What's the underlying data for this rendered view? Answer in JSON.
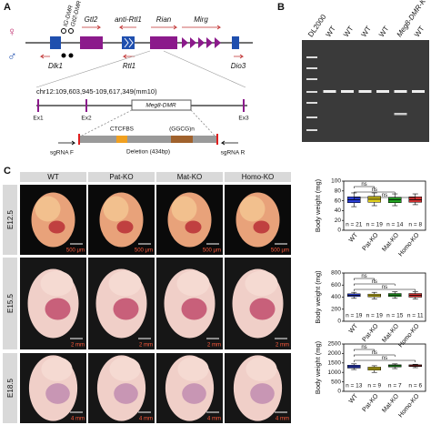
{
  "panel_a": {
    "label": "A",
    "female": "♀",
    "male": "♂",
    "dmrs": [
      "IG-DMR",
      "Gtl2-DMR"
    ],
    "genes_top": [
      "Gtl2",
      "anti-Rtl1",
      "Rian",
      "Mirg"
    ],
    "genes_bottom": [
      "Dlk1",
      "Rtl1",
      "Dio3"
    ],
    "coords": "chr12:109,603,945-109,617,349(mm10)",
    "region": "Meg8-DMR",
    "exons": [
      "Ex1",
      "Ex2",
      "Ex3"
    ],
    "ctcf": "CTCFBS",
    "repeat": "(GGCG)n",
    "sgrna_f": "sgRNA F",
    "deletion": "Deletion (434bp)",
    "sgrna_r": "sgRNA R"
  },
  "panel_b": {
    "label": "B",
    "lanes": [
      "DL2000",
      "WT",
      "WT",
      "WT",
      "WT",
      "Meg8-DMR-KO",
      "WT"
    ]
  },
  "panel_c": {
    "label": "C",
    "columns": [
      "WT",
      "Pat-KO",
      "Mat-KO",
      "Homo-KO"
    ],
    "rows": [
      "E12.5",
      "E15.5",
      "E18.5"
    ],
    "scale_bars": [
      [
        "500 μm",
        "500 μm",
        "500 μm",
        "500 μm"
      ],
      [
        "2 mm",
        "2 mm",
        "2 mm",
        "2 mm"
      ],
      [
        "4 mm",
        "4 mm",
        "4 mm",
        "4 mm"
      ]
    ],
    "plots": [
      {
        "ylabel": "Body weight (mg)",
        "ylim": [
          0,
          100
        ],
        "yticks": [
          0,
          20,
          40,
          60,
          80,
          100
        ],
        "categories": [
          "WT",
          "Pat-KO",
          "Mat-KO",
          "Homo-KO"
        ],
        "colors": [
          "#2b3fd6",
          "#e3d21e",
          "#23a523",
          "#d23232"
        ],
        "boxes": [
          {
            "min": 48,
            "q1": 56,
            "median": 62,
            "q3": 68,
            "max": 76
          },
          {
            "min": 50,
            "q1": 57,
            "median": 63,
            "q3": 69,
            "max": 76
          },
          {
            "min": 50,
            "q1": 56,
            "median": 62,
            "q3": 67,
            "max": 74
          },
          {
            "min": 52,
            "q1": 57,
            "median": 62,
            "q3": 68,
            "max": 74
          }
        ],
        "n_labels": [
          "n = 21",
          "n = 19",
          "n = 14",
          "n = 8"
        ],
        "sig": [
          "ns",
          "ns",
          "ns"
        ]
      },
      {
        "ylabel": "Body weight (mg)",
        "ylim": [
          0,
          800
        ],
        "yticks": [
          0,
          200,
          400,
          600,
          800
        ],
        "categories": [
          "WT",
          "Pat-KO",
          "Mat-KO",
          "Homo-KO"
        ],
        "colors": [
          "#2b3fd6",
          "#e3d21e",
          "#23a523",
          "#d23232"
        ],
        "boxes": [
          {
            "min": 380,
            "q1": 410,
            "median": 430,
            "q3": 455,
            "max": 480
          },
          {
            "min": 370,
            "q1": 405,
            "median": 425,
            "q3": 450,
            "max": 480
          },
          {
            "min": 380,
            "q1": 410,
            "median": 435,
            "q3": 460,
            "max": 490
          },
          {
            "min": 370,
            "q1": 400,
            "median": 430,
            "q3": 460,
            "max": 490
          }
        ],
        "n_labels": [
          "n = 19",
          "n = 19",
          "n = 15",
          "n = 11"
        ],
        "sig": [
          "ns",
          "ns",
          "ns"
        ]
      },
      {
        "ylabel": "Body weight (mg)",
        "ylim": [
          0,
          2500
        ],
        "yticks": [
          0,
          500,
          1000,
          1500,
          2000,
          2500
        ],
        "categories": [
          "WT",
          "Pat-KO",
          "Mat-KO",
          "Homo-KO"
        ],
        "colors": [
          "#2b3fd6",
          "#e3d21e",
          "#23a523",
          "#d23232"
        ],
        "boxes": [
          {
            "min": 1150,
            "q1": 1230,
            "median": 1300,
            "q3": 1380,
            "max": 1450
          },
          {
            "min": 1000,
            "q1": 1120,
            "median": 1200,
            "q3": 1280,
            "max": 1350
          },
          {
            "min": 1200,
            "q1": 1290,
            "median": 1350,
            "q3": 1400,
            "max": 1450
          },
          {
            "min": 1250,
            "q1": 1310,
            "median": 1350,
            "q3": 1400,
            "max": 1430
          }
        ],
        "n_labels": [
          "n = 13",
          "n = 9",
          "n = 7",
          "n = 6"
        ],
        "sig": [
          "ns",
          "ns",
          "ns"
        ]
      }
    ]
  }
}
